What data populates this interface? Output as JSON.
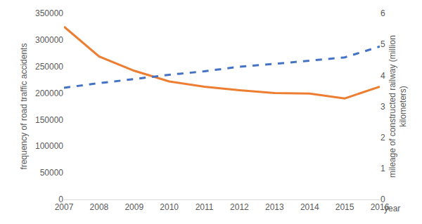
{
  "chart_data": {
    "type": "line",
    "x_label": "year",
    "y_label": "frequency of road traffic accidents",
    "y2_label": "mileage of constructed railway (million kilometers)",
    "categories": [
      "2007",
      "2008",
      "2009",
      "2010",
      "2011",
      "2012",
      "2013",
      "2014",
      "2015",
      "2016"
    ],
    "series": [
      {
        "name": "frequency of road traffic accidents",
        "color": "#ED7D31",
        "line_style": "solid",
        "values": [
          325000,
          269000,
          242000,
          222000,
          212000,
          205500,
          200000,
          199000,
          190000,
          212000
        ]
      },
      {
        "name": "mileage of constructed railway (million kilometers)",
        "color": "#4472C4",
        "line_style": "dashed",
        "axis": "y2",
        "values": [
          3.6,
          3.75,
          3.88,
          4.02,
          4.13,
          4.28,
          4.37,
          4.47,
          4.58,
          4.93
        ]
      }
    ],
    "ylim": [
      0,
      350000
    ],
    "yticks": [
      0,
      50000,
      100000,
      150000,
      200000,
      250000,
      300000,
      350000
    ],
    "y2lim": [
      0,
      6
    ],
    "y2ticks": [
      0,
      1,
      2,
      3,
      4,
      5,
      6
    ],
    "grid": false,
    "legend": "none"
  }
}
